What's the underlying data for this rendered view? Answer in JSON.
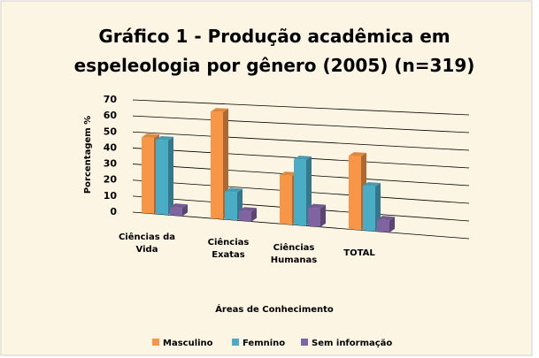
{
  "chart_data": {
    "type": "bar3d",
    "title": "Gráfico 1 - Produção acadêmica em espeleologia por gênero (2005) (n=319)",
    "y_label": "Porcentagem %",
    "x_label": "Áreas de Conhecimento",
    "categories": [
      "Ciências da Vida",
      "Ciências Exatas",
      "Ciências Humanas",
      "TOTAL"
    ],
    "series": [
      {
        "name": "Masculino",
        "color": "#f79646",
        "values": [
          47,
          65,
          29,
          43
        ]
      },
      {
        "name": "Femnino",
        "color": "#4bacc6",
        "values": [
          46,
          17,
          39,
          26
        ]
      },
      {
        "name": "Sem informação",
        "color": "#8064a2",
        "values": [
          5,
          6,
          11,
          7
        ]
      }
    ],
    "ylim": [
      0,
      70
    ],
    "yticks": [
      0,
      10,
      20,
      30,
      40,
      50,
      60,
      70
    ],
    "grid": true,
    "legend": "bottom"
  }
}
